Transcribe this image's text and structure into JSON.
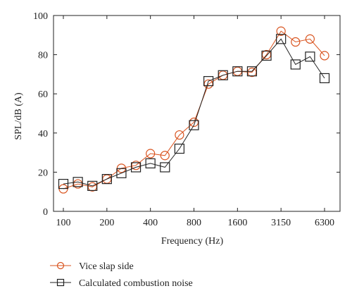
{
  "chart_data": {
    "type": "line",
    "title": "",
    "xlabel": "Frequency (Hz)",
    "ylabel": "SPL/dB (A)",
    "ylim": [
      0,
      100
    ],
    "yticks": [
      0,
      20,
      40,
      60,
      80,
      100
    ],
    "x_scale": "log (1/3-octave bands)",
    "x_categories": [
      "100",
      "125",
      "160",
      "200",
      "250",
      "315",
      "400",
      "500",
      "630",
      "800",
      "1000",
      "1250",
      "1600",
      "2000",
      "2500",
      "3150",
      "4000",
      "5000",
      "6300"
    ],
    "x_tick_labels": [
      "100",
      "200",
      "400",
      "800",
      "1600",
      "3150",
      "6300"
    ],
    "grid": false,
    "legend_position": "below",
    "series": [
      {
        "name": "Vice slap side",
        "color": "#d9531e",
        "marker": "circle",
        "values": [
          11.5,
          14,
          12.5,
          16.5,
          22,
          23.5,
          29.5,
          28.5,
          39,
          45.5,
          65,
          69.5,
          71.5,
          71,
          80,
          92,
          86.5,
          88,
          79.5
        ]
      },
      {
        "name": "Calculated combustion noise",
        "color": "#222222",
        "marker": "square",
        "values": [
          14,
          15,
          13,
          16.5,
          19.5,
          22.5,
          24.5,
          22.5,
          32,
          44,
          66.5,
          69.5,
          71.5,
          71.5,
          79.5,
          88,
          75,
          79,
          68
        ]
      }
    ]
  }
}
